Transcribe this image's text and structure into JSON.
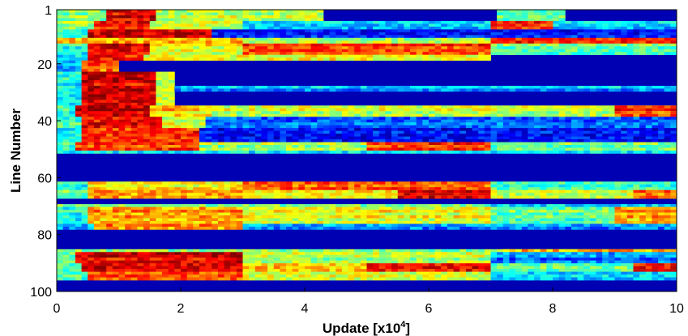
{
  "chart_data": {
    "type": "heatmap",
    "title": "",
    "xlabel": "Update [x10",
    "xlabel_exponent": "4",
    "xlabel_suffix": "]",
    "ylabel": "Line Number",
    "xlim": [
      0,
      10
    ],
    "ylim": [
      1,
      100
    ],
    "y_inverted": true,
    "x_ticks": [
      {
        "value": 0,
        "label": "0"
      },
      {
        "value": 2,
        "label": "2"
      },
      {
        "value": 4,
        "label": "4"
      },
      {
        "value": 6,
        "label": "6"
      },
      {
        "value": 8,
        "label": "8"
      },
      {
        "value": 10,
        "label": "10"
      }
    ],
    "y_ticks": [
      {
        "value": 1,
        "label": "1"
      },
      {
        "value": 20,
        "label": "20"
      },
      {
        "value": 40,
        "label": "40"
      },
      {
        "value": 60,
        "label": "60"
      },
      {
        "value": 80,
        "label": "80"
      },
      {
        "value": 100,
        "label": "100"
      }
    ],
    "colormap": "jet",
    "value_range": [
      0,
      1
    ],
    "grid": false,
    "legend": false,
    "background_value": 0.05,
    "bands": [
      {
        "lines": [
          1,
          4
        ],
        "segments": [
          [
            0,
            1.6,
            0.5
          ],
          [
            0.8,
            1.6,
            0.9
          ],
          [
            1.6,
            4.3,
            0.55
          ],
          [
            7.1,
            8.2,
            0.45
          ]
        ]
      },
      {
        "lines": [
          5,
          7
        ],
        "segments": [
          [
            0,
            0.6,
            0.5
          ],
          [
            0.6,
            1.5,
            0.85
          ],
          [
            1.5,
            3.0,
            0.55
          ],
          [
            3.0,
            10,
            0.3
          ],
          [
            7.0,
            8.0,
            0.8
          ]
        ]
      },
      {
        "lines": [
          8,
          10
        ],
        "segments": [
          [
            0,
            0.5,
            0.4
          ],
          [
            0.5,
            2.5,
            0.9
          ],
          [
            2.5,
            10,
            0.12
          ]
        ]
      },
      {
        "lines": [
          11,
          12
        ],
        "segments": [
          [
            0,
            3.0,
            0.7
          ],
          [
            3.0,
            7.0,
            0.55
          ],
          [
            7.0,
            10,
            0.85
          ]
        ]
      },
      {
        "lines": [
          13,
          16
        ],
        "segments": [
          [
            0,
            0.5,
            0.4
          ],
          [
            0.5,
            1.5,
            0.9
          ],
          [
            1.5,
            3.0,
            0.6
          ],
          [
            3.0,
            7.0,
            0.8
          ],
          [
            7.0,
            10,
            0.45
          ]
        ]
      },
      {
        "lines": [
          17,
          18
        ],
        "segments": [
          [
            0,
            0.5,
            0.35
          ],
          [
            0.5,
            1.4,
            0.85
          ],
          [
            1.4,
            7.0,
            0.6
          ]
        ]
      },
      {
        "lines": [
          19,
          22
        ],
        "segments": [
          [
            0,
            0.4,
            0.3
          ],
          [
            0.4,
            1.0,
            0.8
          ]
        ]
      },
      {
        "lines": [
          23,
          34
        ],
        "segments": [
          [
            0,
            0.4,
            0.35
          ],
          [
            0.4,
            1.6,
            0.9
          ],
          [
            1.6,
            1.9,
            0.55
          ]
        ]
      },
      {
        "lines": [
          28,
          29
        ],
        "segments": [
          [
            1.9,
            10,
            0.3
          ]
        ]
      },
      {
        "lines": [
          35,
          38
        ],
        "segments": [
          [
            0,
            0.3,
            0.4
          ],
          [
            0.3,
            1.5,
            0.9
          ],
          [
            1.5,
            2.5,
            0.65
          ],
          [
            2.5,
            10,
            0.55
          ],
          [
            9.0,
            10,
            0.8
          ]
        ]
      },
      {
        "lines": [
          39,
          42
        ],
        "segments": [
          [
            0,
            0.4,
            0.4
          ],
          [
            0.4,
            1.7,
            0.85
          ],
          [
            1.7,
            2.4,
            0.55
          ],
          [
            2.4,
            10,
            0.2
          ]
        ]
      },
      {
        "lines": [
          43,
          47
        ],
        "segments": [
          [
            0,
            0.4,
            0.4
          ],
          [
            0.4,
            2.3,
            0.85
          ],
          [
            2.3,
            10,
            0.15
          ]
        ]
      },
      {
        "lines": [
          48,
          50
        ],
        "segments": [
          [
            0,
            0.3,
            0.45
          ],
          [
            0.3,
            2.3,
            0.85
          ],
          [
            2.3,
            7.0,
            0.55
          ],
          [
            5.0,
            7.0,
            0.85
          ],
          [
            7.0,
            10,
            0.5
          ]
        ]
      },
      {
        "lines": [
          51,
          51
        ],
        "segments": [
          [
            0,
            10,
            0.35
          ]
        ]
      },
      {
        "lines": [
          62,
          64
        ],
        "segments": [
          [
            0,
            0.5,
            0.35
          ],
          [
            0.5,
            3.0,
            0.6
          ],
          [
            3.0,
            7.0,
            0.75
          ],
          [
            7.0,
            10,
            0.4
          ]
        ]
      },
      {
        "lines": [
          65,
          67
        ],
        "segments": [
          [
            0,
            0.5,
            0.45
          ],
          [
            0.5,
            3.0,
            0.7
          ],
          [
            3.0,
            7.0,
            0.6
          ],
          [
            5.5,
            7.0,
            0.88
          ],
          [
            7.0,
            10,
            0.55
          ],
          [
            9.3,
            10,
            0.75
          ]
        ]
      },
      {
        "lines": [
          70,
          70
        ],
        "segments": [
          [
            0,
            7.0,
            0.45
          ],
          [
            7.0,
            10,
            0.3
          ]
        ]
      },
      {
        "lines": [
          71,
          76
        ],
        "segments": [
          [
            0,
            0.5,
            0.4
          ],
          [
            0.5,
            3.0,
            0.72
          ],
          [
            3.0,
            7.0,
            0.62
          ],
          [
            7.0,
            10,
            0.48
          ],
          [
            9.0,
            10,
            0.72
          ]
        ]
      },
      {
        "lines": [
          77,
          78
        ],
        "segments": [
          [
            0,
            0.6,
            0.3
          ],
          [
            0.6,
            3.0,
            0.75
          ],
          [
            3.0,
            10,
            0.28
          ]
        ]
      },
      {
        "lines": [
          86,
          86
        ],
        "segments": [
          [
            0,
            10,
            0.55
          ],
          [
            7.2,
            10,
            0.75
          ]
        ]
      },
      {
        "lines": [
          87,
          90
        ],
        "segments": [
          [
            0,
            0.3,
            0.45
          ],
          [
            0.3,
            3.0,
            0.9
          ],
          [
            3.0,
            7.0,
            0.55
          ],
          [
            7.0,
            10,
            0.25
          ]
        ]
      },
      {
        "lines": [
          91,
          93
        ],
        "segments": [
          [
            0,
            0.4,
            0.45
          ],
          [
            0.4,
            3.0,
            0.88
          ],
          [
            3.0,
            5.0,
            0.65
          ],
          [
            5.0,
            7.0,
            0.85
          ],
          [
            7.0,
            10,
            0.45
          ],
          [
            9.3,
            10,
            0.85
          ]
        ]
      },
      {
        "lines": [
          94,
          96
        ],
        "segments": [
          [
            0,
            0.5,
            0.4
          ],
          [
            0.5,
            3.0,
            0.75
          ],
          [
            3.0,
            7.0,
            0.55
          ],
          [
            7.0,
            10,
            0.3
          ]
        ]
      }
    ]
  }
}
